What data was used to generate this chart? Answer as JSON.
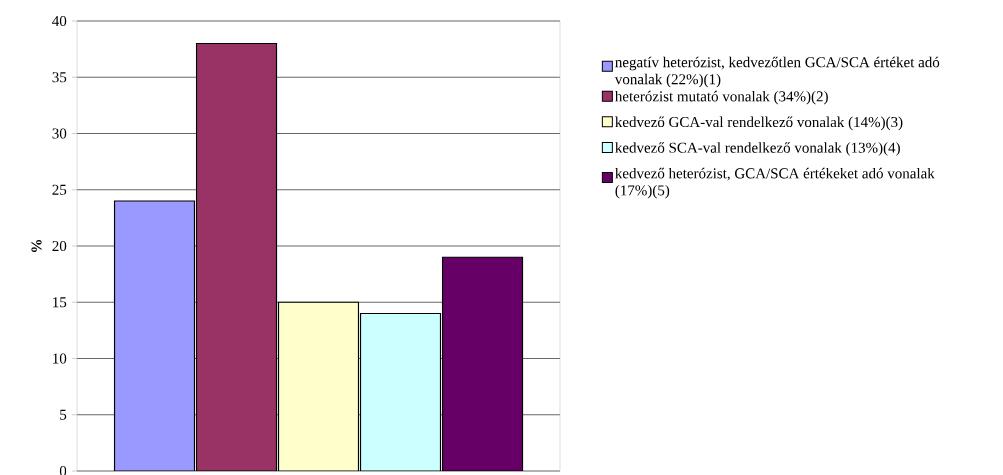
{
  "chart_data": {
    "type": "bar",
    "ylabel": "%",
    "categories": [
      null
    ],
    "series": [
      {
        "name": "negatív heterózist, kedvezőtlen GCA/SCA értéket adó vonalak (22%)(1)",
        "color": "#9999ff",
        "values": [
          24
        ]
      },
      {
        "name": "heterózist mutató vonalak (34%)(2)",
        "color": "#993366",
        "values": [
          38
        ]
      },
      {
        "name": "kedvező GCA-val rendelkező vonalak (14%)(3)",
        "color": "#ffffcc",
        "values": [
          15
        ]
      },
      {
        "name": "kedvező SCA-val rendelkező vonalak (13%)(4)",
        "color": "#ccffff",
        "values": [
          14
        ]
      },
      {
        "name": "kedvező heterózist, GCA/SCA értékeket adó vonalak (17%)(5)",
        "color": "#660066",
        "values": [
          19
        ]
      }
    ],
    "ylim": [
      0,
      40
    ],
    "yticks": [
      0,
      5,
      10,
      15,
      20,
      25,
      30,
      35,
      40
    ],
    "grid": "y",
    "legend": "right"
  }
}
